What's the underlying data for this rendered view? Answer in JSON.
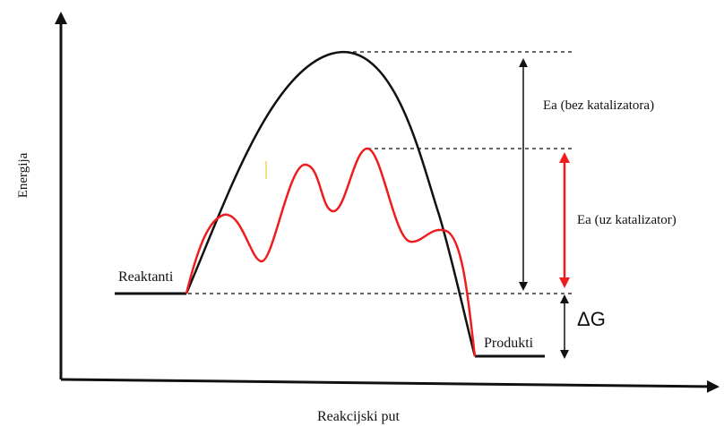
{
  "axes": {
    "y_label": "Energija",
    "x_label": "Reakcijski put"
  },
  "labels": {
    "reactants": "Reaktanti",
    "products": "Produkti",
    "ea_uncatalyzed": "Ea (bez katalizatora)",
    "ea_catalyzed": "Ea (uz katalizator)",
    "delta_g": "ΔG"
  },
  "curves": {
    "uncatalyzed": {
      "color": "#111111"
    },
    "catalyzed": {
      "color": "#ee1c1c"
    }
  },
  "arrows": {
    "ea_uncatalyzed": {
      "color": "#111111"
    },
    "ea_catalyzed": {
      "color": "#ee1c1c"
    },
    "delta_g": {
      "color": "#111111"
    }
  },
  "energy_levels": {
    "reactants": 0,
    "products": -1,
    "peak_uncatalyzed": 4.2,
    "peak_catalyzed": 2.5
  }
}
